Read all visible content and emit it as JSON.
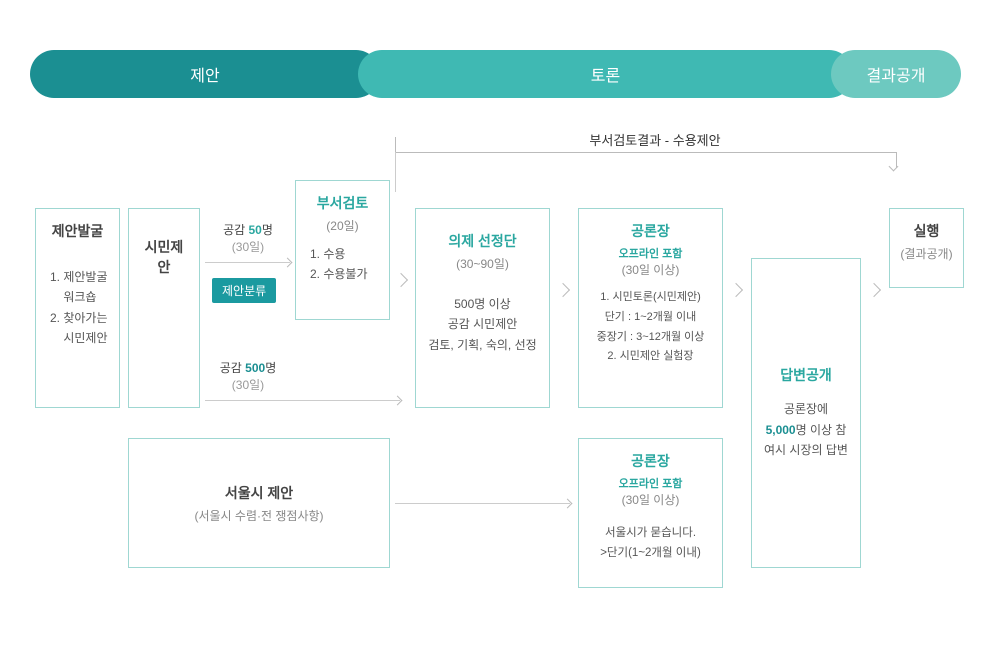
{
  "colors": {
    "teal_dark": "#1b8f92",
    "teal_mid": "#3fb9b3",
    "teal_light": "#6dc9c0",
    "box_border": "#9fd7d2",
    "box_title": "#1b8f92",
    "altTitle": "#2aa7a0",
    "tag_bg": "#1b9aa0",
    "text": "#444444",
    "muted": "#999999",
    "highlight50": "#2aa7a0",
    "highlight500": "#1b8f92",
    "highlight5000": "#1b8f92"
  },
  "header": {
    "pill1": "제안",
    "pill2": "토론",
    "pill3": "결과공개"
  },
  "resultHeader": "부서검토결과 - 수용제안",
  "boxes": {
    "b1": {
      "title": "제안발굴",
      "body": "1. 제안발굴\n    워크숍\n2. 찾아가는\n    시민제안"
    },
    "b2": {
      "title": "시민제안"
    },
    "threshold50": {
      "label": "공감 ",
      "num": "50",
      "unit": "명",
      "sub": "(30일)"
    },
    "threshold500": {
      "label": "공감 ",
      "num": "500",
      "unit": "명",
      "sub": "(30일)"
    },
    "tag": "제안분류",
    "b3": {
      "pretitle": "부서검토",
      "sub": "(20일)",
      "body": "1. 수용\n2. 수용불가"
    },
    "b4": {
      "title": "의제 선정단",
      "sub": "(30~90일)",
      "body": "500명 이상\n공감 시민제안\n검토, 기획, 숙의, 선정"
    },
    "b5": {
      "title": "공론장",
      "subtitle": "오프라인 포함",
      "sub": "(30일 이상)",
      "body": "1. 시민토론(시민제안)\n단기 : 1~2개월 이내\n중장기 : 3~12개월 이상\n2. 시민제안 실험장"
    },
    "b6": {
      "title": "답변공개",
      "bodyPre": "공론장에\n",
      "num": "5,000",
      "bodyPost": "명 이상 참여시\n시장의 답변"
    },
    "b7": {
      "title": "실행",
      "sub": "(결과공개)"
    },
    "b8": {
      "title": "서울시 제안",
      "sub": "(서울시 수렴·전 쟁점사항)"
    },
    "b9": {
      "title": "공론장",
      "subtitle": "오프라인 포함",
      "sub": "(30일 이상)",
      "body": "서울시가 묻습니다.\n>단기(1~2개월 이내)"
    }
  }
}
